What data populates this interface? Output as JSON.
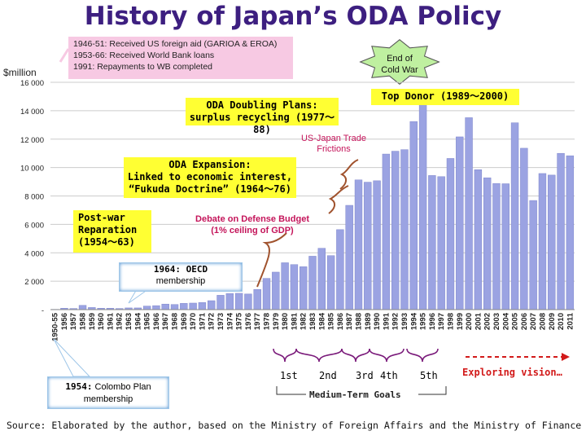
{
  "page": {
    "title": "History of Japan’s ODA Policy",
    "history_lines": [
      "1946-51: Received US foreign aid (GARIOA & EROA)",
      "1953-66: Received World Bank loans",
      "1991: Repayments to WB completed"
    ],
    "end_of_cold_war": [
      "End of",
      "Cold War"
    ],
    "doubling": [
      "ODA Doubling Plans:",
      "surplus recycling (1977～88)"
    ],
    "top_donor": "Top Donor (1989～2000)",
    "expansion": [
      "ODA Expansion:",
      "Linked to economic interest,",
      "“Fukuda Doctrine” (1964～76)"
    ],
    "postwar": [
      "Post-war",
      "Reparation",
      "(1954～63)"
    ],
    "debate": [
      "Debate on Defense Budget",
      "(1% ceiling of GDP)"
    ],
    "trade": [
      "US-Japan Trade",
      "Frictions"
    ],
    "oecd": {
      "bold": "1964: OECD",
      "rest": "membership"
    },
    "colombo": {
      "bold": "1954:",
      "rest": " Colombo Plan",
      "rest2": "membership"
    },
    "goals": [
      "1st",
      "2nd",
      "3rd",
      "4th",
      "5th"
    ],
    "goals_label": "Medium-Term Goals",
    "exploring": "Exploring vision…",
    "source": "Source: Elaborated by the author, based on the Ministry of Foreign Affairs and the Ministry of Finance"
  },
  "colors": {
    "bar": "#9ba3e2",
    "bar_edge": "#7f87cc",
    "grid": "#cccccc",
    "accent_line": "#a0522d",
    "goal_bracket": "#7a1a7a",
    "arrow": "#d21a1a"
  },
  "chart_data": {
    "type": "bar",
    "ylabel": "$million",
    "ylim": [
      0,
      16000
    ],
    "yticks": [
      "-",
      "2 000",
      "4 000",
      "6 000",
      "8 000",
      "10 000",
      "12 000",
      "14 000",
      "16 000"
    ],
    "categories": [
      "1950-55",
      "1956",
      "1957",
      "1958",
      "1959",
      "1960",
      "1961",
      "1962",
      "1963",
      "1964",
      "1965",
      "1966",
      "1967",
      "1968",
      "1969",
      "1970",
      "1971",
      "1972",
      "1973",
      "1974",
      "1975",
      "1976",
      "1977",
      "1978",
      "1979",
      "1980",
      "1981",
      "1982",
      "1983",
      "1984",
      "1985",
      "1986",
      "1987",
      "1988",
      "1989",
      "1990",
      "1991",
      "1992",
      "1993",
      "1994",
      "1995",
      "1996",
      "1997",
      "1998",
      "1999",
      "2000",
      "2001",
      "2002",
      "2003",
      "2004",
      "2005",
      "2006",
      "2007",
      "2008",
      "2009",
      "2010",
      "2011"
    ],
    "values": [
      20,
      100,
      80,
      300,
      150,
      100,
      100,
      80,
      120,
      120,
      250,
      280,
      390,
      360,
      440,
      460,
      500,
      630,
      1010,
      1130,
      1150,
      1100,
      1420,
      2200,
      2640,
      3300,
      3170,
      3020,
      3760,
      4320,
      3800,
      5630,
      7340,
      9130,
      8970,
      9070,
      10950,
      11150,
      11260,
      13240,
      14490,
      9440,
      9360,
      10640,
      12160,
      13510,
      9850,
      9280,
      8880,
      8860,
      13150,
      11360,
      7680,
      9580,
      9470,
      11000,
      10830
    ]
  }
}
